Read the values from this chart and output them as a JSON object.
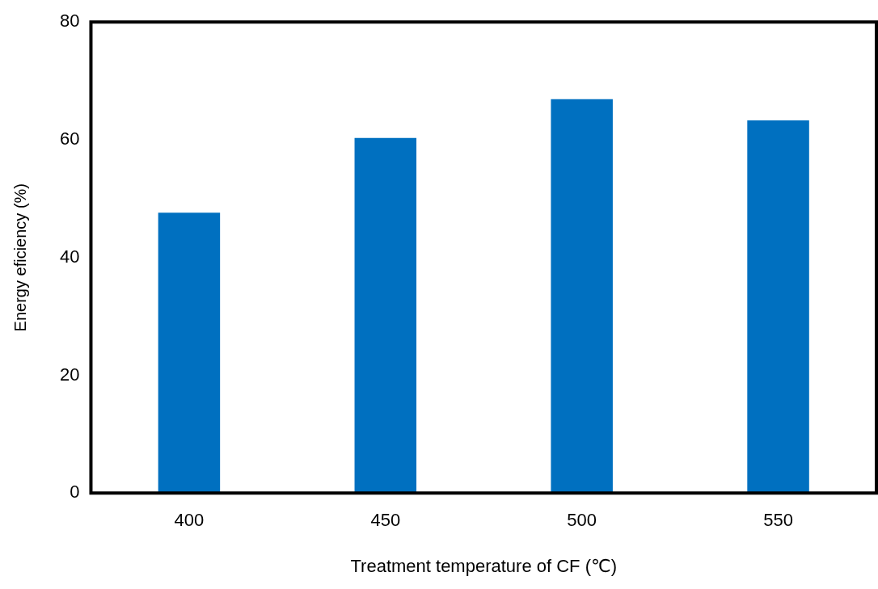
{
  "chart_data": {
    "type": "bar",
    "xlabel": "Treatment temperature of CF (℃)",
    "ylabel": "Energy eficiency (%)",
    "categories": [
      "400",
      "450",
      "500",
      "550"
    ],
    "values": [
      47.6,
      60.3,
      66.9,
      63.3
    ],
    "color": "#0070c0",
    "ylim": [
      0,
      80
    ],
    "yticks": [
      0,
      20,
      40,
      60,
      80
    ],
    "grid": false,
    "legend": false
  }
}
